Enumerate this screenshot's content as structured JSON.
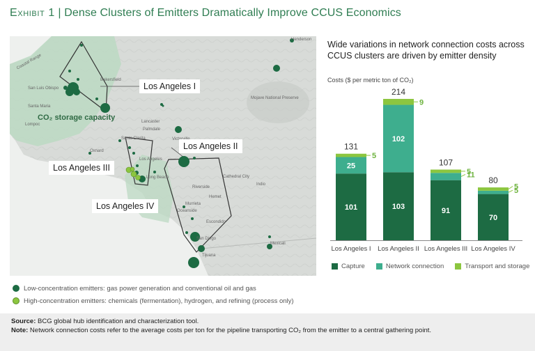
{
  "header": {
    "exhibit_label": "Exhibit 1",
    "separator": " | ",
    "title": "Dense Clusters of Emitters Dramatically Improve CCUS Economics"
  },
  "chart_header": {
    "subtitle": "Wide variations in network connection costs across CCUS clusters are driven by emitter density",
    "unit_label": "Costs ($ per metric ton of CO₂)"
  },
  "map": {
    "clusters": [
      "Los Angeles I",
      "Los Angeles II",
      "Los Angeles III",
      "Los Angeles IV"
    ],
    "storage_label": "CO₂ storage capacity",
    "place_names": [
      "Coastal Range",
      "Bakersfield",
      "Santa Maria",
      "San Luis Obispo",
      "Lompoc",
      "Oxnard",
      "Santa Clarita",
      "Lancaster",
      "Palmdale",
      "Victorville",
      "Los Angeles",
      "Long Beach",
      "Riverside",
      "Hemet",
      "Murrieta",
      "Oceanside",
      "Escondido",
      "San Diego",
      "Tijuana",
      "Mexicali",
      "Cathedral City",
      "Indio",
      "Henderson",
      "Mojave National Preserve"
    ],
    "colors": {
      "low": "#1d6b43",
      "high": "#8cc63f",
      "cluster_fill": "#bcd9c3"
    }
  },
  "legend": {
    "low_emitters": "Low-concentration emitters: gas power generation and conventional oil and gas",
    "high_emitters": "High-concentration emitters: chemicals (fermentation), hydrogen, and refining (process only)"
  },
  "chart_data": {
    "type": "bar",
    "stacked": true,
    "categories": [
      "Los Angeles I",
      "Los Angeles II",
      "Los Angeles III",
      "Los Angeles IV"
    ],
    "series": [
      {
        "name": "Capture",
        "color": "#1d6b43",
        "values": [
          101,
          103,
          91,
          70
        ]
      },
      {
        "name": "Network connection",
        "color": "#3eae8e",
        "values": [
          25,
          102,
          11,
          5
        ]
      },
      {
        "name": "Transport and storage",
        "color": "#8cc63f",
        "values": [
          5,
          9,
          5,
          5
        ]
      }
    ],
    "totals": [
      131,
      214,
      107,
      80
    ],
    "ylabel": "Costs ($ per metric ton of CO₂)",
    "ylim": [
      0,
      214
    ]
  },
  "footer": {
    "source_label": "Source:",
    "source_text": " BCG global hub identification and characterization tool.",
    "note_label": "Note:",
    "note_text": " Network connection costs refer to the average costs per ton for the pipeline transporting CO₂ from the emitter to a central gathering point."
  }
}
